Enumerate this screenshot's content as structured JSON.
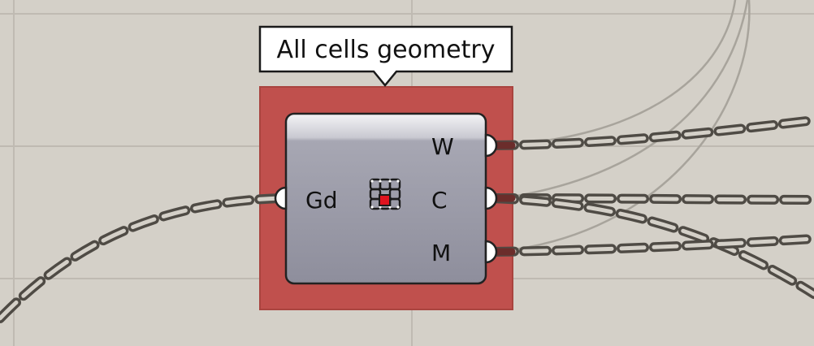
{
  "canvas": {
    "background": "#d4d0c8",
    "grid_color": "#bfbab2"
  },
  "tooltip": {
    "text": "All cells geometry"
  },
  "component": {
    "selected": true,
    "highlight_color": "#c0504d",
    "icon": "cell-grid-icon",
    "inputs": [
      {
        "label": "Gd"
      }
    ],
    "outputs": [
      {
        "label": "W"
      },
      {
        "label": "C"
      },
      {
        "label": "M"
      }
    ]
  },
  "wires": {
    "style": "dashed",
    "color": "#555049",
    "thin_color": "#a8a49c"
  }
}
